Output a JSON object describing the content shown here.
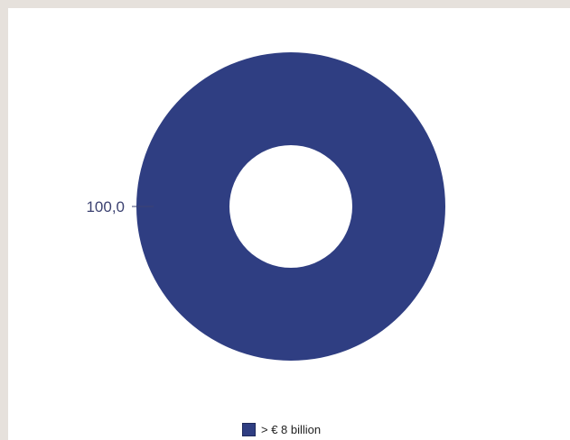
{
  "chart_data": {
    "type": "pie",
    "variant": "donut",
    "title": "",
    "categories": [
      "> € 8 billion"
    ],
    "values": [
      100.0
    ],
    "data_labels": [
      "100,0"
    ],
    "colors": [
      "#2f3e82"
    ],
    "legend_position": "bottom"
  }
}
